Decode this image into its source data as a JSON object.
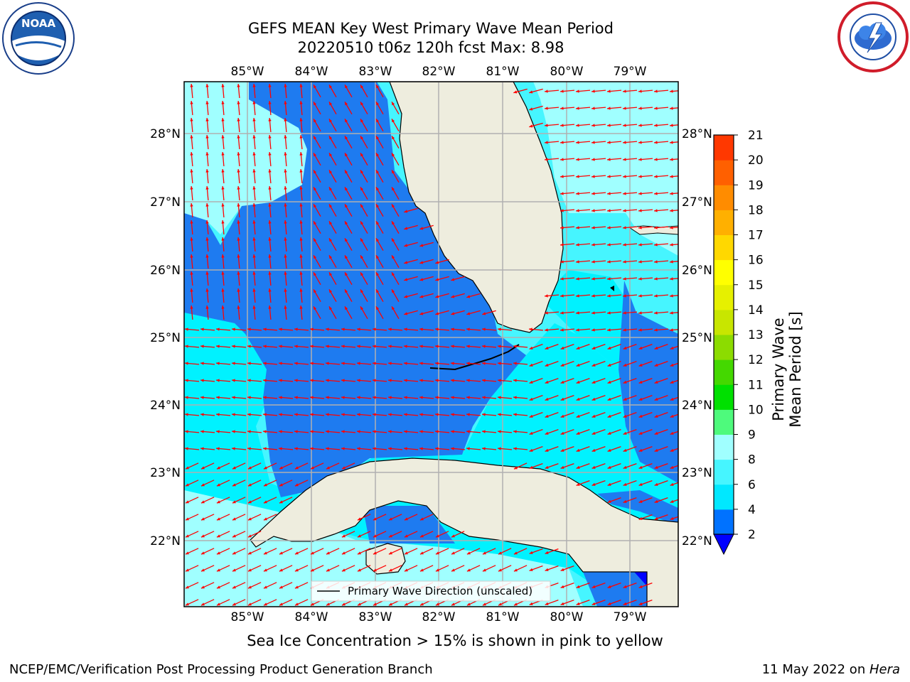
{
  "title": {
    "line1": "GEFS MEAN Key West Primary Wave Mean Period",
    "line2": "20220510 t06z 120h fcst   Max: 8.98"
  },
  "logos": {
    "left": {
      "name": "NOAA",
      "ring_text": "NATIONAL OCEANIC AND ATMOSPHERIC ADMINISTRATION • U.S. DEPARTMENT OF COMMERCE"
    },
    "right": {
      "ring_text": "NATIONAL WEATHER SERVICE"
    }
  },
  "map": {
    "lon_labels": [
      "85°W",
      "84°W",
      "83°W",
      "82°W",
      "81°W",
      "80°W",
      "79°W"
    ],
    "lat_labels": [
      "28°N",
      "27°N",
      "26°N",
      "25°N",
      "24°N",
      "23°N",
      "22°N"
    ],
    "legend_text": "Primary Wave Direction (unscaled)"
  },
  "colorbar": {
    "label": "Primary Wave Mean Period [s]",
    "ticks": [
      "2",
      "4",
      "6",
      "8",
      "9",
      "10",
      "11",
      "12",
      "13",
      "14",
      "15",
      "16",
      "17",
      "18",
      "19",
      "20",
      "21"
    ],
    "colors": [
      "#0072ff",
      "#00e8ff",
      "#46f5ff",
      "#a0ffff",
      "#4efa7c",
      "#00e000",
      "#44d800",
      "#8cdc00",
      "#c8e600",
      "#e6f000",
      "#ffff00",
      "#ffd800",
      "#ffb000",
      "#ff8c00",
      "#ff6000",
      "#ff3800",
      "#ff0000"
    ],
    "under_color": "#0000ff"
  },
  "palette": {
    "blue": "#1e7bf0",
    "cyan": "#00f2ff",
    "light_cyan": "#a0ffff",
    "mid_cyan": "#46f5ff",
    "land": "#eeedde",
    "arrow": "#ff0000"
  },
  "caption": "Sea Ice Concentration > 15% is shown in pink to yellow",
  "footer": {
    "left": "NCEP/EMC/Verification Post Processing Product Generation Branch",
    "date": "11 May 2022 on ",
    "host": "Hera"
  }
}
